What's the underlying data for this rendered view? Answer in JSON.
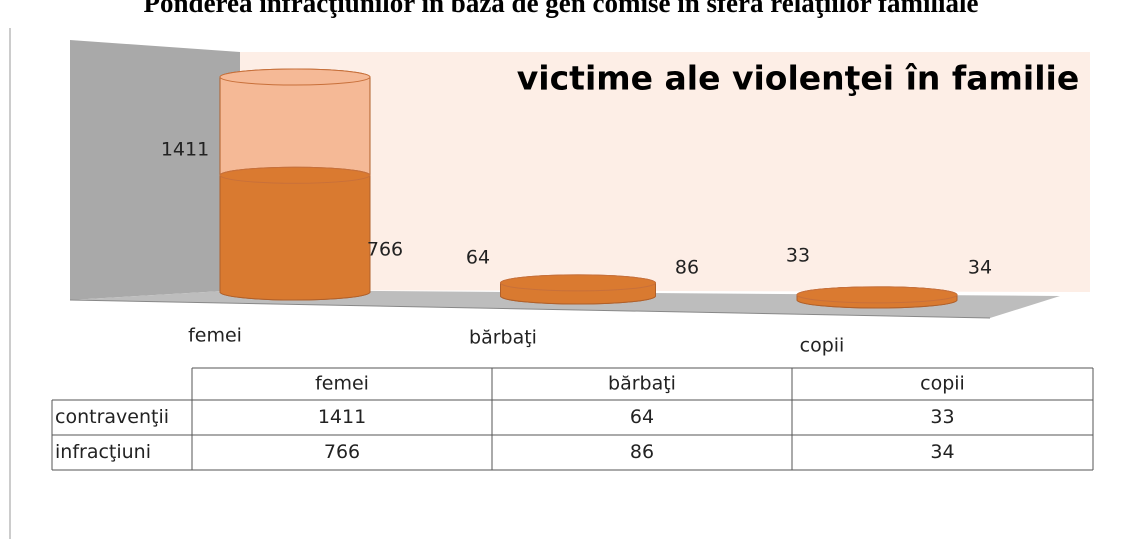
{
  "chart_data": {
    "type": "cylinder",
    "title": "Ponderea infracţiunilor în baza de gen comise în sfera relaţiilor familiale",
    "subtitle": "victime ale violenţei în familie",
    "categories": [
      "femei",
      "bărbaţi",
      "copii"
    ],
    "series": [
      {
        "name": "contravenţii",
        "color": "#f5b996",
        "values": [
          1411,
          64,
          33
        ]
      },
      {
        "name": "infracţiuni",
        "color": "#d97a30",
        "values": [
          766,
          86,
          34
        ]
      }
    ]
  }
}
